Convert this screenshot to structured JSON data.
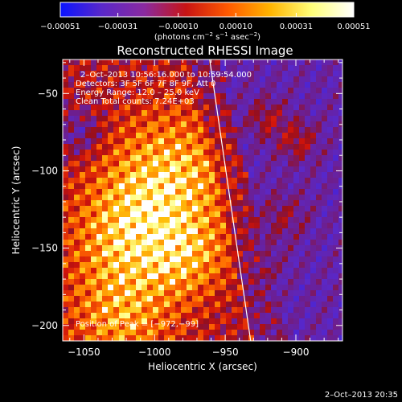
{
  "chart_data": {
    "type": "heatmap",
    "title": "Reconstructed RHESSI Image",
    "xlabel": "Heliocentric X (arcsec)",
    "ylabel": "Heliocentric Y (arcsec)",
    "xlim": [
      -1065,
      -867
    ],
    "ylim": [
      -210,
      -28
    ],
    "x_ticks": [
      {
        "value": -1050,
        "label": "−1050"
      },
      {
        "value": -1000,
        "label": "−1000"
      },
      {
        "value": -950,
        "label": "−950"
      },
      {
        "value": -900,
        "label": "−900"
      }
    ],
    "y_ticks": [
      {
        "value": -50,
        "label": "−50"
      },
      {
        "value": -100,
        "label": "−100"
      },
      {
        "value": -150,
        "label": "−150"
      },
      {
        "value": -200,
        "label": "−200"
      }
    ],
    "colorbar": {
      "range": [
        -0.00051,
        0.00051
      ],
      "ticks": [
        {
          "value": -0.00051,
          "label": "−0.00051"
        },
        {
          "value": -0.00031,
          "label": "−0.00031"
        },
        {
          "value": -0.0001,
          "label": "−0.00010"
        },
        {
          "value": 0.0001,
          "label": "0.00010"
        },
        {
          "value": 0.00031,
          "label": "0.00031"
        },
        {
          "value": 0.00051,
          "label": "0.00051"
        }
      ],
      "unit_base": "(photons cm",
      "unit_exp1": "−2",
      "unit_mid": " s",
      "unit_exp2": "−1",
      "unit_mid2": " asec",
      "unit_exp3": "−2",
      "unit_end": ")",
      "colors": [
        "#0a14ff",
        "#5a28c8",
        "#8a2aa0",
        "#c81414",
        "#ff5a00",
        "#ffb400",
        "#ffff7a",
        "#ffffff"
      ]
    },
    "info_lines": [
      "2–Oct–2013 10:56:16.000 to 10:59:54.000",
      "Detectors: 3F 5F 6F 7F 8F 9F, Att 0",
      "Energy Range: 12.0 – 25.0 keV",
      "Clean    Total counts: 7.24E+03"
    ],
    "peak_label": "Position of Peak = [−972,−99]",
    "peak": [
      -972,
      -99
    ],
    "limb_line": [
      [
        -961,
        -28
      ],
      [
        -932,
        -210
      ]
    ],
    "grid": false
  },
  "footer": {
    "timestamp": "2–Oct–2013 20:35"
  }
}
